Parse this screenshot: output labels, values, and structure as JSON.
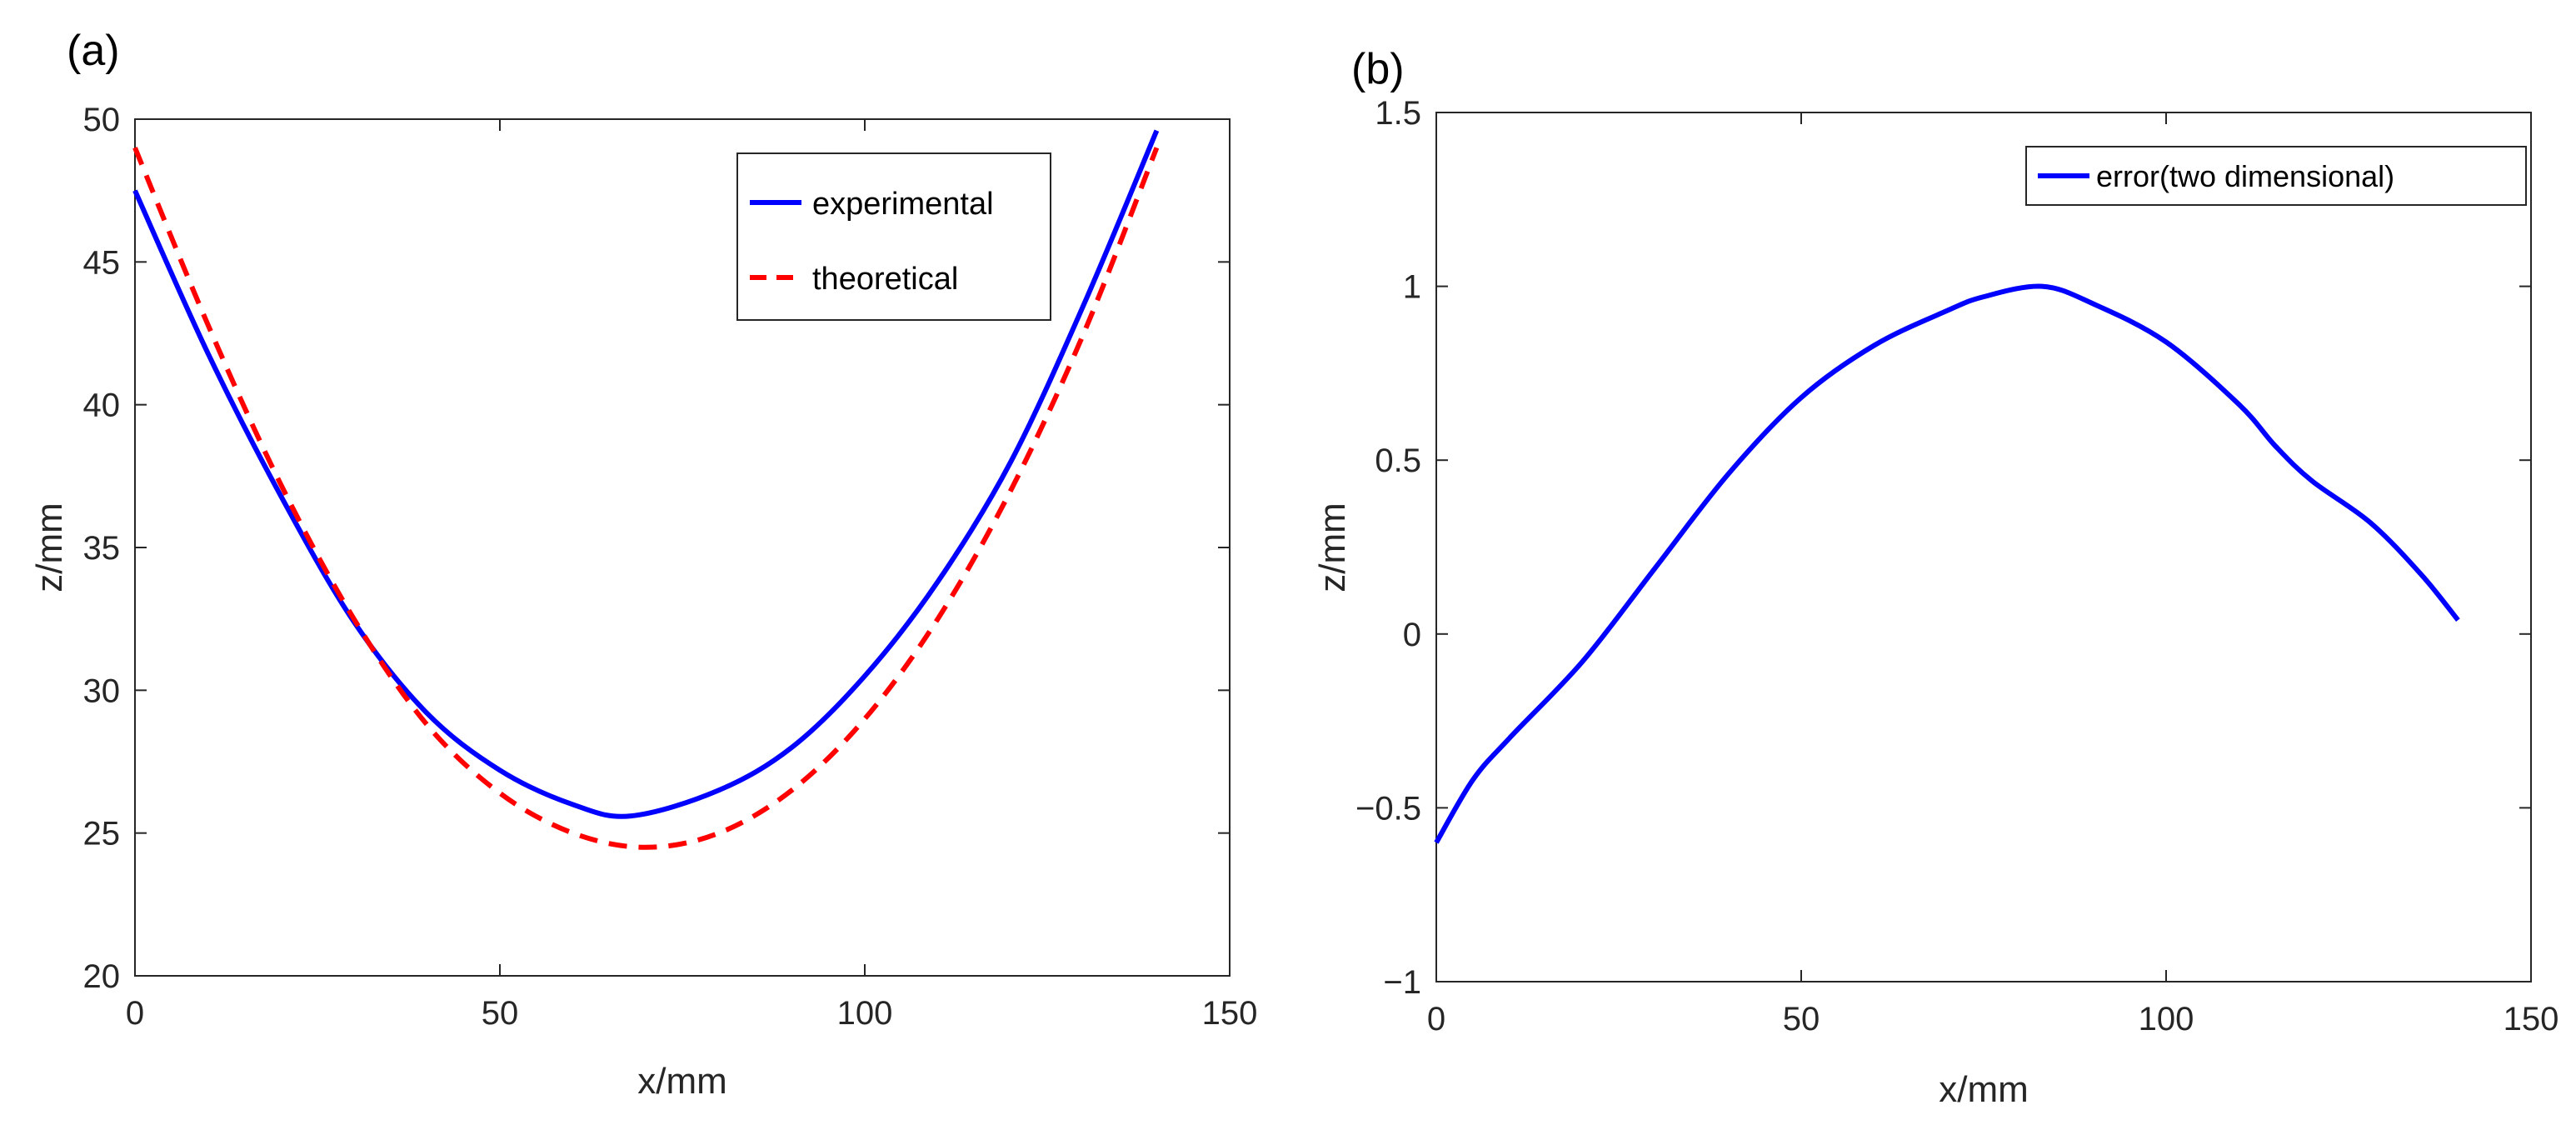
{
  "chart_data": [
    {
      "panel_label": "(a)",
      "type": "line",
      "xlabel": "x/mm",
      "ylabel": "z/mm",
      "xlim": [
        0,
        150
      ],
      "ylim": [
        20,
        50
      ],
      "xticks": [
        "0",
        "50",
        "100",
        "150"
      ],
      "yticks": [
        "20",
        "25",
        "30",
        "35",
        "40",
        "45",
        "50"
      ],
      "grid": false,
      "legend_position": "top-right",
      "series": [
        {
          "name": "experimental",
          "color": "#0000ff",
          "style": "solid",
          "x": [
            0,
            10,
            20,
            30,
            40,
            50,
            60,
            68,
            80,
            90,
            100,
            110,
            120,
            130,
            140
          ],
          "y": [
            47.5,
            41.8,
            36.8,
            32.4,
            29.2,
            27.2,
            26.0,
            25.6,
            26.5,
            28.0,
            30.5,
            33.8,
            38.0,
            43.5,
            49.6
          ]
        },
        {
          "name": "theoretical",
          "color": "#ff0000",
          "style": "dashed",
          "x": [
            0,
            10,
            20,
            30,
            40,
            50,
            60,
            70,
            80,
            90,
            100,
            110,
            120,
            130,
            140
          ],
          "y": [
            49.0,
            42.8,
            37.2,
            32.5,
            28.8,
            26.4,
            25.0,
            24.5,
            25.0,
            26.5,
            29.0,
            32.5,
            37.0,
            42.5,
            49.0
          ]
        }
      ]
    },
    {
      "panel_label": "(b)",
      "type": "line",
      "xlabel": "x/mm",
      "ylabel": "z/mm",
      "xlim": [
        0,
        150
      ],
      "ylim": [
        -1,
        1.5
      ],
      "xticks": [
        "0",
        "50",
        "100",
        "150"
      ],
      "yticks": [
        "−1",
        "−0.5",
        "0",
        "0.5",
        "1",
        "1.5"
      ],
      "grid": false,
      "legend_position": "top-right",
      "series": [
        {
          "name": "error(two dimensional)",
          "color": "#0000ff",
          "style": "solid",
          "x": [
            0,
            5,
            10,
            20,
            30,
            40,
            50,
            60,
            70,
            75,
            83,
            90,
            100,
            110,
            115,
            120,
            128,
            135,
            140
          ],
          "y": [
            -0.6,
            -0.42,
            -0.3,
            -0.08,
            0.19,
            0.46,
            0.68,
            0.83,
            0.93,
            0.97,
            1.0,
            0.95,
            0.84,
            0.66,
            0.54,
            0.44,
            0.32,
            0.17,
            0.04
          ]
        }
      ]
    }
  ]
}
